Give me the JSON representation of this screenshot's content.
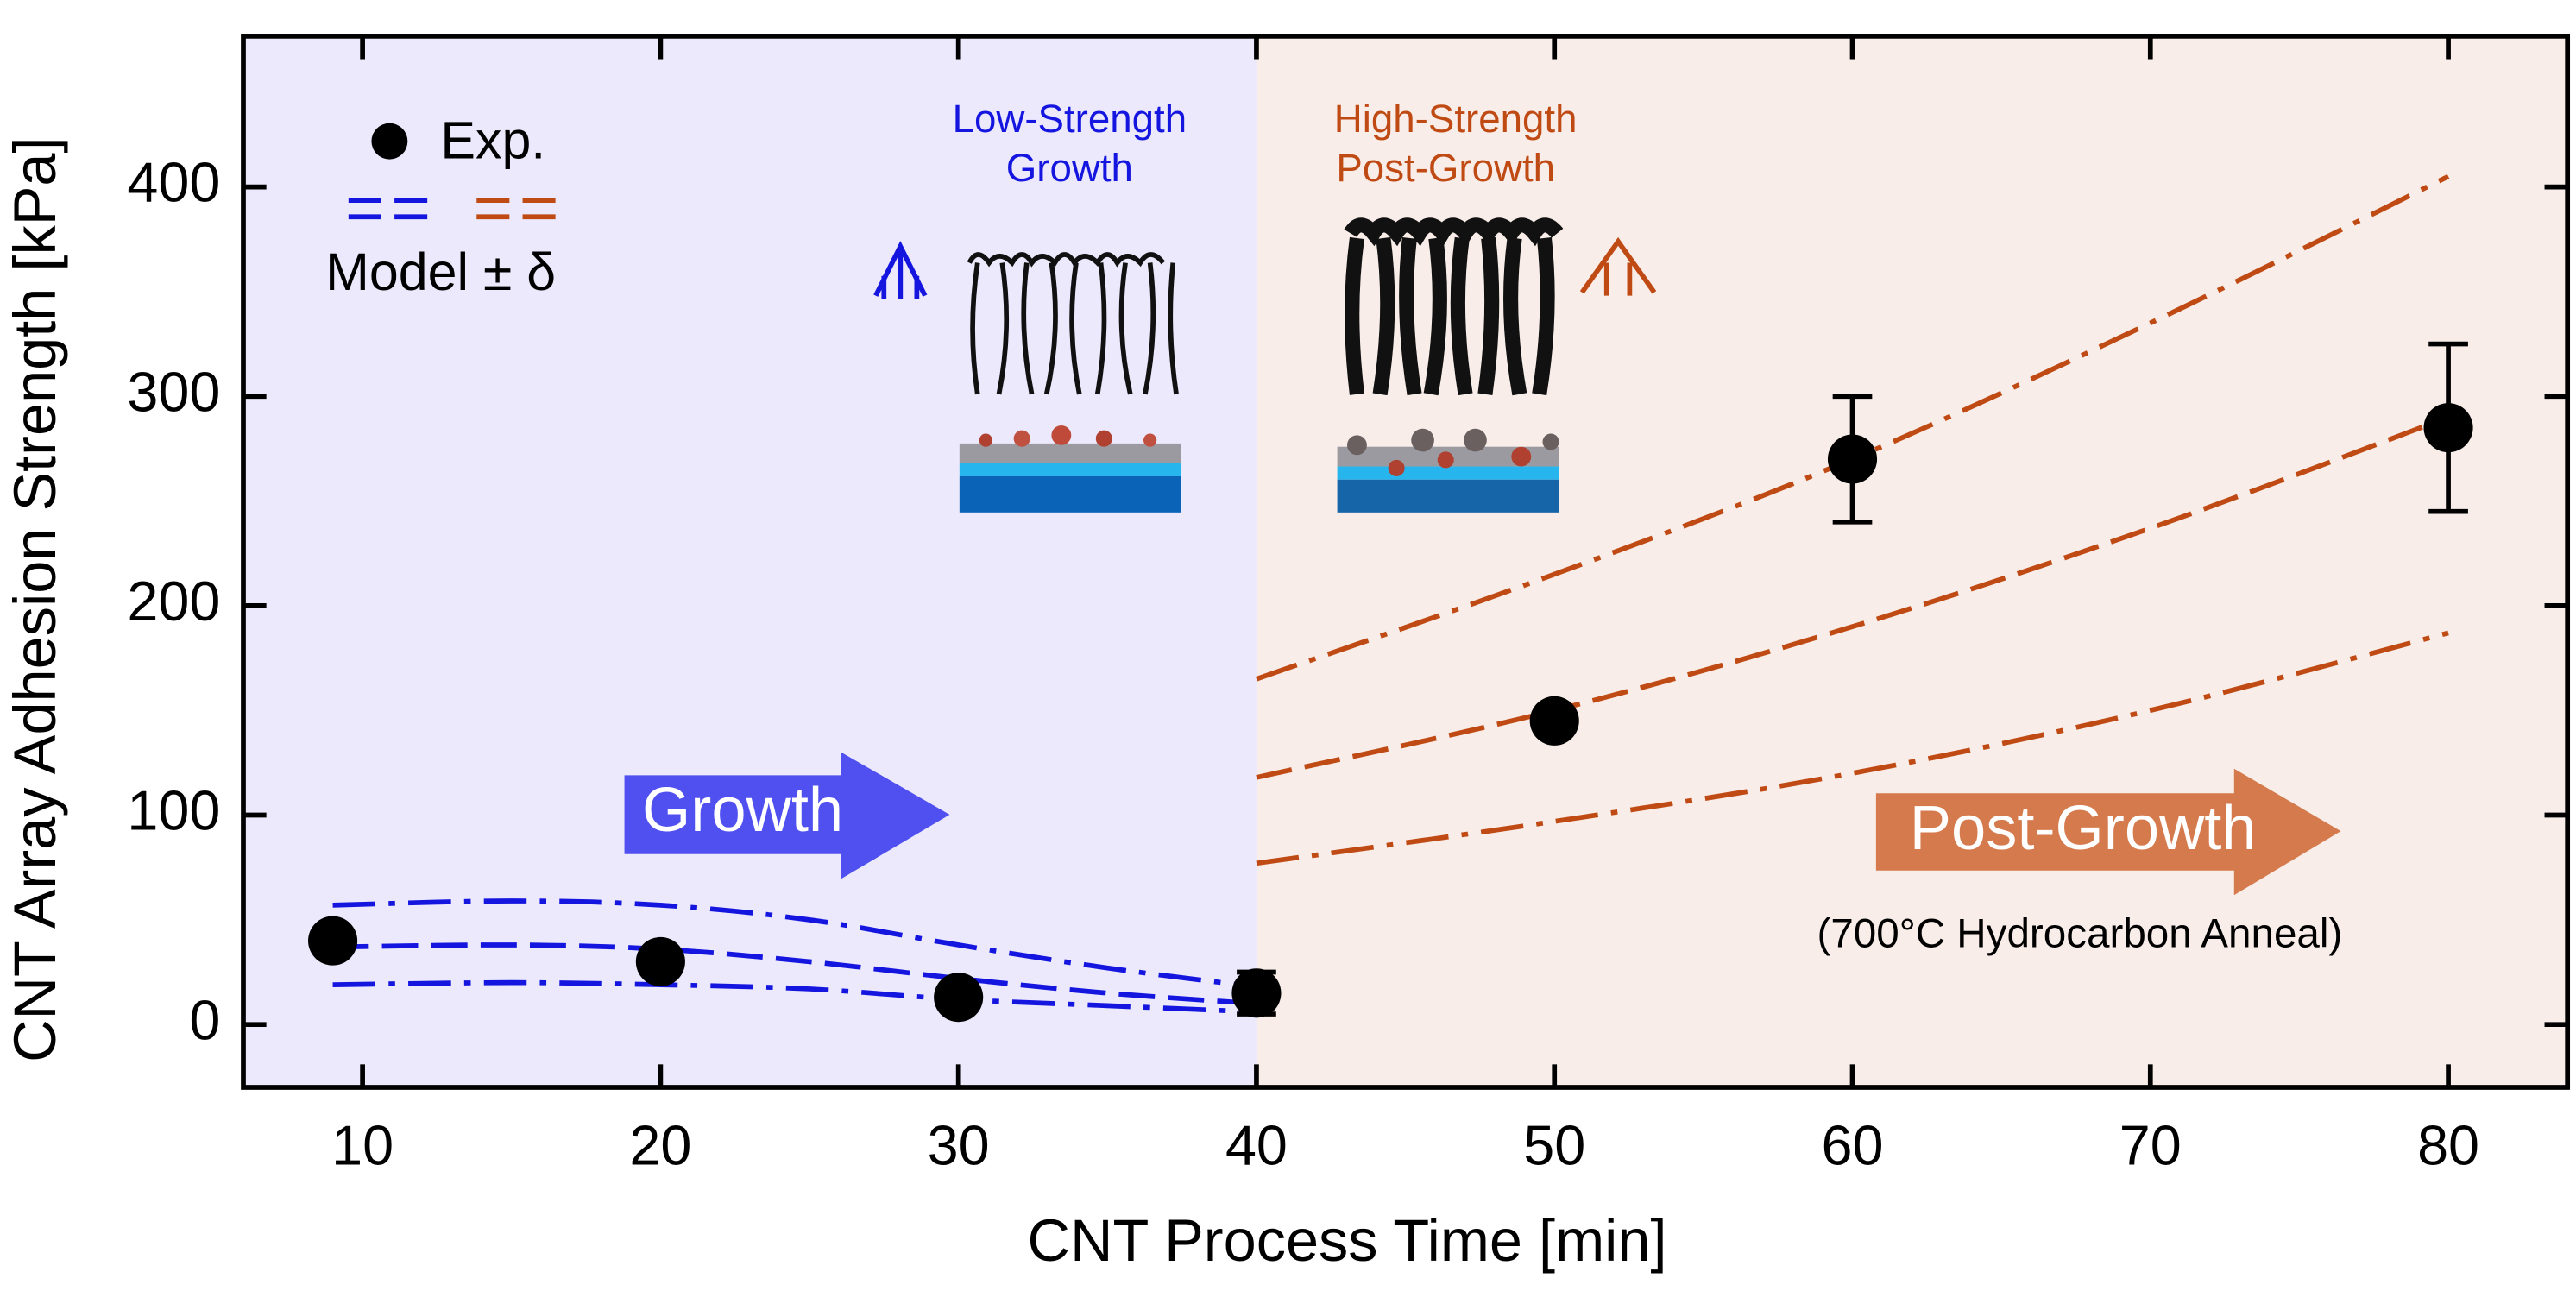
{
  "chart_data": {
    "type": "scatter",
    "x_label": "CNT Process Time [min]",
    "y_label": "CNT Array Adhesion Strength [kPa]",
    "xlim": [
      6,
      84
    ],
    "ylim": [
      -30,
      472
    ],
    "xticks": [
      10,
      20,
      30,
      40,
      50,
      60,
      70,
      80
    ],
    "yticks": [
      0,
      100,
      200,
      300,
      400
    ],
    "regions": [
      {
        "xrange": [
          6,
          40
        ],
        "color": "#ebe9fb"
      },
      {
        "xrange": [
          40,
          84
        ],
        "color": "#f8ede8"
      }
    ],
    "experiment": {
      "name": "Exp.",
      "color": "#000000",
      "x": [
        9,
        20,
        30,
        40,
        50,
        60,
        80
      ],
      "values": [
        40,
        30,
        13,
        15,
        145,
        270,
        285
      ],
      "errors": [
        null,
        null,
        null,
        10,
        null,
        30,
        40
      ]
    },
    "model_label": "Model ± δ",
    "models": [
      {
        "color": "#1515e0",
        "x": [
          9,
          15,
          20,
          25,
          30,
          35,
          40
        ],
        "values": [
          37,
          38,
          36,
          30,
          22,
          15,
          10
        ],
        "upper": [
          57,
          59,
          57,
          50,
          38,
          27,
          18
        ],
        "lower": [
          19,
          20,
          19,
          17,
          12,
          9,
          6
        ]
      },
      {
        "color": "#c04a14",
        "x": [
          40,
          50,
          60,
          70,
          80
        ],
        "values": [
          118,
          150,
          190,
          237,
          290
        ],
        "upper": [
          165,
          215,
          270,
          335,
          405
        ],
        "lower": [
          77,
          97,
          120,
          150,
          187
        ]
      }
    ],
    "annotations": {
      "low_strength": [
        "Low-Strength",
        "Growth"
      ],
      "high_strength": [
        "High-Strength",
        "Post-Growth"
      ],
      "growth_arrow": "Growth",
      "post_growth_arrow": "Post-Growth",
      "anneal": "(700°C Hydrocarbon Anneal)"
    }
  }
}
